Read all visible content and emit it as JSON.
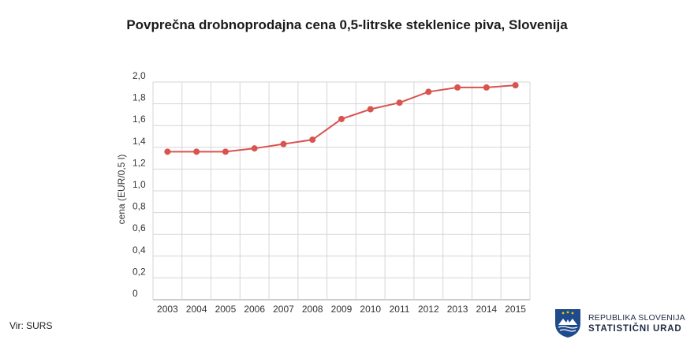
{
  "chart_data": {
    "type": "line",
    "title": "Povprečna drobnoprodajna cena 0,5-litrske steklenice piva, Slovenija",
    "xlabel": "",
    "ylabel": "cena (EUR/0,5 l)",
    "categories": [
      "2003",
      "2004",
      "2005",
      "2006",
      "2007",
      "2008",
      "2009",
      "2010",
      "2011",
      "2012",
      "2013",
      "2014",
      "2015"
    ],
    "series": [
      {
        "values": [
          1.36,
          1.36,
          1.36,
          1.39,
          1.43,
          1.47,
          1.66,
          1.75,
          1.81,
          1.91,
          1.95,
          1.95,
          1.97
        ]
      }
    ],
    "ylim": [
      0,
      2.0
    ],
    "yticks": [
      "0",
      "0,2",
      "0,4",
      "0,6",
      "0,8",
      "1,0",
      "1,2",
      "1,4",
      "1,6",
      "1,8",
      "2,0"
    ],
    "grid": "vertical and horizontal",
    "legend": "none",
    "line_color": "#d9534f"
  },
  "footer": {
    "source": "Vir: SURS",
    "org_line1": "REPUBLIKA SLOVENIJA",
    "org_line2": "STATISTIČNI URAD"
  },
  "icons": {
    "logo": "slovenian-coat-of-arms-logo"
  }
}
